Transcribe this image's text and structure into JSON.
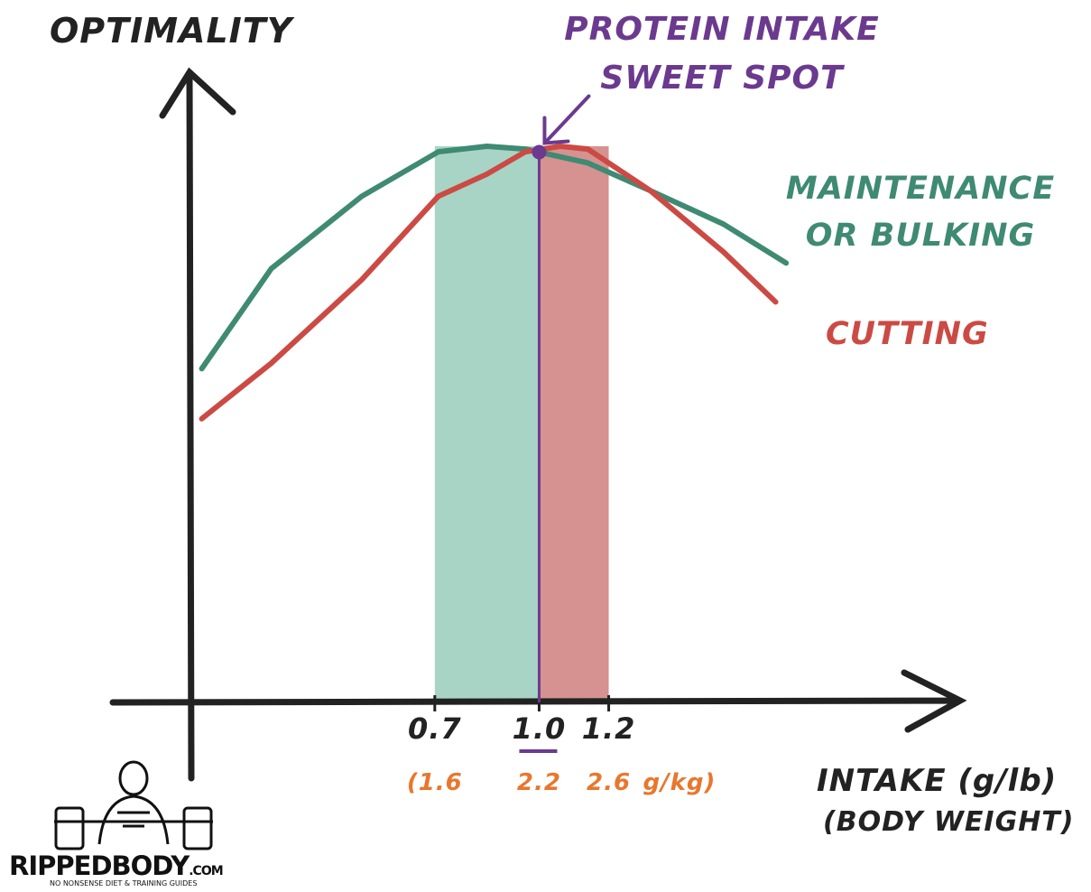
{
  "chart_data": {
    "type": "line",
    "title": "PROTEIN INTAKE SWEET SPOT",
    "ylabel": "OPTIMALITY",
    "xlabel": "INTAKE (g/lb)",
    "xlabel_sub": "(BODY WEIGHT)",
    "xlim": [
      0,
      2.2
    ],
    "ylim": [
      0,
      100
    ],
    "xticks": [
      0.7,
      {
        "value": 1.0,
        "label": "1.0"
      },
      1.2
    ],
    "xtick_labels_kg": [
      "(1.6",
      "2.2",
      "2.6"
    ],
    "xtick_kg_unit": "g/kg)",
    "sweet_spot_x": 1.0,
    "bands": [
      {
        "from": 0.7,
        "to": 1.0,
        "color": "#a8d4c6"
      },
      {
        "from": 1.0,
        "to": 1.2,
        "color": "#d59290"
      }
    ],
    "series": [
      {
        "name": "MAINTENANCE OR BULKING",
        "color": "#3f8a72",
        "x": [
          0.03,
          0.23,
          0.49,
          0.71,
          0.85,
          0.96,
          1.14,
          1.32,
          1.53,
          1.71
        ],
        "values": [
          60,
          78,
          91,
          99,
          100,
          99.5,
          97,
          92,
          86,
          79
        ]
      },
      {
        "name": "CUTTING",
        "color": "#cc4a44",
        "x": [
          0.03,
          0.23,
          0.49,
          0.71,
          0.85,
          0.96,
          1.06,
          1.14,
          1.32,
          1.53,
          1.68
        ],
        "values": [
          51,
          61,
          76,
          91,
          95,
          99,
          100,
          99.5,
          92,
          81,
          72
        ]
      }
    ],
    "logo": {
      "name": "RIPPEDBODY",
      "suffix": ".COM",
      "tagline": "NO NONSENSE DIET & TRAINING GUIDES"
    }
  }
}
